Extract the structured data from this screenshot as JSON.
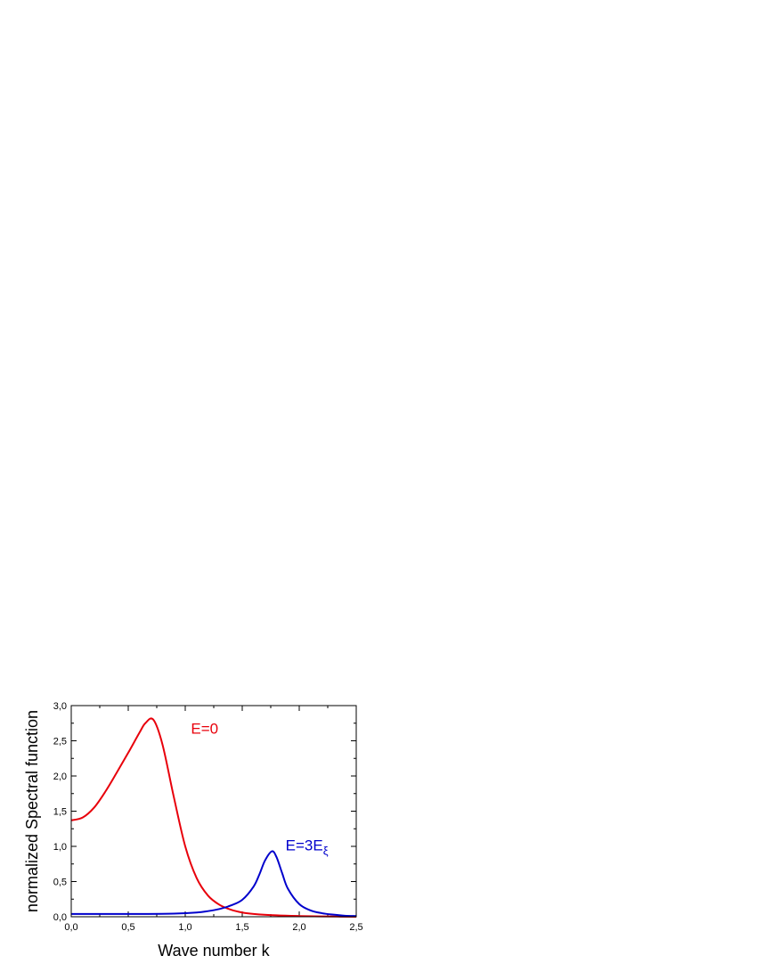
{
  "chart_data": {
    "type": "line",
    "title": "",
    "xlabel": "Wave number k",
    "ylabel": "normalized Spectral function",
    "xlim": [
      0.0,
      2.5
    ],
    "ylim": [
      0.0,
      3.0
    ],
    "x_ticks": [
      "0,0",
      "0,5",
      "1,0",
      "1,5",
      "2,0",
      "2,5"
    ],
    "y_ticks": [
      "0,0",
      "0,5",
      "1,0",
      "1,5",
      "2,0",
      "2,5",
      "3,0"
    ],
    "grid": false,
    "legend": "none",
    "series": [
      {
        "name": "E=0",
        "color": "#e8000b",
        "x": [
          0.0,
          0.1,
          0.2,
          0.3,
          0.4,
          0.5,
          0.6,
          0.65,
          0.72,
          0.8,
          0.9,
          1.0,
          1.1,
          1.2,
          1.3,
          1.4,
          1.5,
          1.6,
          1.8,
          2.0,
          2.2,
          2.5
        ],
        "y": [
          1.37,
          1.41,
          1.55,
          1.78,
          2.05,
          2.33,
          2.62,
          2.75,
          2.8,
          2.45,
          1.7,
          1.0,
          0.55,
          0.3,
          0.17,
          0.1,
          0.06,
          0.04,
          0.02,
          0.01,
          0.005,
          0.0
        ]
      },
      {
        "name": "E=3E_ξ",
        "color": "#0000cc",
        "x": [
          0.0,
          0.3,
          0.6,
          0.9,
          1.1,
          1.2,
          1.3,
          1.4,
          1.5,
          1.6,
          1.65,
          1.7,
          1.76,
          1.8,
          1.85,
          1.9,
          2.0,
          2.1,
          2.2,
          2.3,
          2.4,
          2.5
        ],
        "y": [
          0.04,
          0.04,
          0.04,
          0.045,
          0.06,
          0.08,
          0.11,
          0.16,
          0.24,
          0.43,
          0.6,
          0.8,
          0.93,
          0.85,
          0.62,
          0.4,
          0.18,
          0.09,
          0.05,
          0.03,
          0.015,
          0.01
        ]
      }
    ],
    "annotations": [
      {
        "text": "E=0",
        "x": 1.05,
        "y": 2.6,
        "color": "#e8000b"
      },
      {
        "text": "E=3E",
        "sub": "ξ",
        "x": 1.88,
        "y": 0.94,
        "color": "#0000cc"
      }
    ]
  }
}
